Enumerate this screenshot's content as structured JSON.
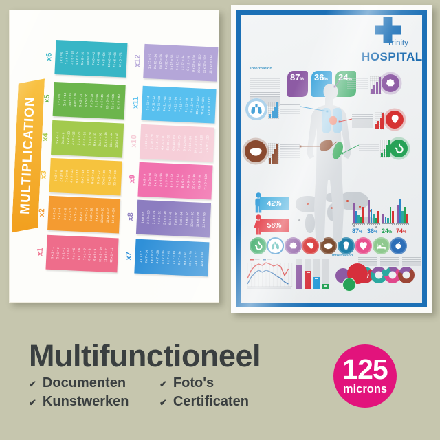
{
  "background_color": "#c6c6ae",
  "product": {
    "title": "Multifunctioneel",
    "check_glyph": "✔",
    "features": [
      {
        "label": "Documenten"
      },
      {
        "label": "Kunstwerken"
      },
      {
        "label": "Foto's"
      },
      {
        "label": "Certificaten"
      }
    ],
    "badge": {
      "value": "125",
      "unit": "microns",
      "color": "#e2137c"
    }
  },
  "multiplication_poster": {
    "title": "MULTIPLICATION",
    "ribbon_colors": [
      "#f8c243",
      "#f29f1e"
    ],
    "strips": [
      {
        "label": "x6",
        "color": "#38b6c6",
        "equations": [
          "1 x 6 = 6",
          "2 x 6 = 12",
          "3 x 6 = 18",
          "4 x 6 = 24",
          "5 x 6 = 30",
          "6 x 6 = 36",
          "7 x 6 = 42",
          "8 x 6 = 48",
          "9 x 6 = 54",
          "10 x 6 = 60",
          "11 x 6 = 66",
          "12 x 6 = 72"
        ]
      },
      {
        "label": "x5",
        "color": "#6cb54c",
        "equations": [
          "1 x 5 = 5",
          "2 x 5 = 10",
          "3 x 5 = 15",
          "4 x 5 = 20",
          "5 x 5 = 25",
          "6 x 5 = 30",
          "7 x 5 = 35",
          "8 x 5 = 40",
          "9 x 5 = 45",
          "10 x 5 = 50",
          "11 x 5 = 55",
          "12 x 5 = 60"
        ]
      },
      {
        "label": "x4",
        "color": "#a3ca4d",
        "equations": [
          "1 x 4 = 4",
          "2 x 4 = 8",
          "3 x 4 = 12",
          "4 x 4 = 16",
          "5 x 4 = 20",
          "6 x 4 = 24",
          "7 x 4 = 28",
          "8 x 4 = 32",
          "9 x 4 = 36",
          "10 x 4 = 40",
          "11 x 4 = 44",
          "12 x 4 = 48"
        ]
      },
      {
        "label": "x3",
        "color": "#f6c33e",
        "equations": [
          "1 x 3 = 3",
          "2 x 3 = 6",
          "3 x 3 = 9",
          "4 x 3 = 12",
          "5 x 3 = 15",
          "6 x 3 = 18",
          "7 x 3 = 21",
          "8 x 3 = 24",
          "9 x 3 = 27",
          "10 x 3 = 30",
          "11 x 3 = 33",
          "12 x 3 = 36"
        ]
      },
      {
        "label": "x2",
        "color": "#f49b31",
        "equations": [
          "1 x 2 = 2",
          "2 x 2 = 4",
          "3 x 2 = 6",
          "4 x 2 = 8",
          "5 x 2 = 10",
          "6 x 2 = 12",
          "7 x 2 = 14",
          "8 x 2 = 16",
          "9 x 2 = 18",
          "10 x 2 = 20",
          "11 x 2 = 22",
          "12 x 2 = 24"
        ]
      },
      {
        "label": "x1",
        "color": "#ee6d8b",
        "equations": [
          "1 x 1 = 1",
          "2 x 1 = 2",
          "3 x 1 = 3",
          "4 x 1 = 4",
          "5 x 1 = 5",
          "6 x 1 = 6",
          "7 x 1 = 7",
          "8 x 1 = 8",
          "9 x 1 = 9",
          "10 x 1 = 10",
          "11 x 1 = 11",
          "12 x 1 = 12"
        ]
      },
      {
        "label": "x12",
        "color": "#b4a6d8",
        "equations": [
          "1 x 12 = 12",
          "2 x 12 = 24",
          "3 x 12 = 36",
          "4 x 12 = 48",
          "5 x 12 = 60",
          "6 x 12 = 72",
          "7 x 12 = 84",
          "8 x 12 = 96",
          "9 x 12 = 108",
          "10 x 12 = 120",
          "11 x 12 = 132",
          "12 x 12 = 144"
        ]
      },
      {
        "label": "x11",
        "color": "#58c0ef",
        "equations": [
          "1 x 11 = 11",
          "2 x 11 = 22",
          "3 x 11 = 33",
          "4 x 11 = 44",
          "5 x 11 = 55",
          "6 x 11 = 66",
          "7 x 11 = 77",
          "8 x 11 = 88",
          "9 x 11 = 99",
          "10 x 11 = 110",
          "11 x 11 = 121",
          "12 x 11 = 132"
        ]
      },
      {
        "label": "x10",
        "color": "#f6ced8",
        "equations": [
          "1 x 10 = 10",
          "2 x 10 = 20",
          "3 x 10 = 30",
          "4 x 10 = 40",
          "5 x 10 = 50",
          "6 x 10 = 60",
          "7 x 10 = 70",
          "8 x 10 = 80",
          "9 x 10 = 90",
          "10 x 10 = 100",
          "11 x 10 = 110",
          "12 x 10 = 120"
        ]
      },
      {
        "label": "x9",
        "color": "#f171ae",
        "equations": [
          "1 x 9 = 9",
          "2 x 9 = 18",
          "3 x 9 = 27",
          "4 x 9 = 36",
          "5 x 9 = 45",
          "6 x 9 = 54",
          "7 x 9 = 63",
          "8 x 9 = 72",
          "9 x 9 = 81",
          "10 x 9 = 90",
          "11 x 9 = 99",
          "12 x 9 = 108"
        ]
      },
      {
        "label": "x8",
        "color": "#8c7dc0",
        "equations": [
          "1 x 8 = 8",
          "2 x 8 = 16",
          "3 x 8 = 24",
          "4 x 8 = 32",
          "5 x 8 = 40",
          "6 x 8 = 48",
          "7 x 8 = 56",
          "8 x 8 = 64",
          "9 x 8 = 72",
          "10 x 8 = 80",
          "11 x 8 = 88",
          "12 x 8 = 96"
        ]
      },
      {
        "label": "x7",
        "color": "#2f90d8",
        "equations": [
          "1 x 7 = 7",
          "2 x 7 = 14",
          "3 x 7 = 21",
          "4 x 7 = 28",
          "5 x 7 = 35",
          "6 x 7 = 42",
          "7 x 7 = 49",
          "8 x 7 = 56",
          "9 x 7 = 63",
          "10 x 7 = 70",
          "11 x 7 = 77",
          "12 x 7 = 84"
        ]
      }
    ]
  },
  "hospital_poster": {
    "frame_color": "#1c70b6",
    "brand": {
      "cross_color": "#1d71b8",
      "line1": "Trinity",
      "line2": "HOSPITAL",
      "text_color": "#1d6cb0"
    },
    "info_heading": "Information",
    "info_heading_2": "Information",
    "stat_badges": [
      {
        "value": "87",
        "suffix": "%",
        "color": "#8d5ba4"
      },
      {
        "value": "36",
        "suffix": "%",
        "color": "#2b9cd8"
      },
      {
        "value": "24",
        "suffix": "%",
        "color": "#27a257"
      }
    ],
    "organ_callouts": [
      {
        "name": "brain",
        "color": "#8d5ba4"
      },
      {
        "name": "lungs",
        "color": "#4aa3d8"
      },
      {
        "name": "heart",
        "color": "#d63333"
      },
      {
        "name": "liver",
        "color": "#8a4a30"
      },
      {
        "name": "stomach",
        "color": "#27a257"
      }
    ],
    "gender_stats": [
      {
        "label": "42%",
        "color": "#3aa9dc",
        "icon": "male",
        "icon_color": "#2f9ad8"
      },
      {
        "label": "58%",
        "color": "#e0232e",
        "icon": "female",
        "icon_color": "#e0232e"
      }
    ],
    "region_stats": [
      {
        "value": "87",
        "suffix": "%",
        "color": "#2b86c8",
        "bars": [
          30,
          18,
          12,
          9,
          24
        ]
      },
      {
        "value": "36",
        "suffix": "%",
        "color": "#2b86c8",
        "bars": [
          34,
          21,
          13,
          8,
          18
        ]
      },
      {
        "value": "24",
        "suffix": "%",
        "color": "#27a257",
        "bars": [
          14,
          10,
          8,
          24,
          18
        ]
      },
      {
        "value": "74",
        "suffix": "%",
        "color": "#d63333",
        "bars": [
          27,
          35,
          18,
          24,
          14
        ]
      }
    ],
    "region_bar_colors": [
      "#8d5ba4",
      "#2b86c8",
      "#2ba8a0",
      "#27a257",
      "#d63333"
    ],
    "organ_row": [
      {
        "icon": "stomach",
        "bg": "#27a257",
        "style": "solid"
      },
      {
        "icon": "lungs",
        "bg": "#ffffff",
        "ring": "#2b86c8",
        "glyph": "#2ba8a0",
        "style": "ring"
      },
      {
        "icon": "brain",
        "bg": "#8d5ba4",
        "style": "solid"
      },
      {
        "icon": "kidney",
        "bg": "#d63333",
        "style": "solid"
      },
      {
        "icon": "liver",
        "bg": "#7a4a2e",
        "style": "solid"
      },
      {
        "icon": "tooth",
        "bg": "#1f7fa8",
        "style": "solid"
      },
      {
        "icon": "heart",
        "bg": "#e8528f",
        "style": "solid"
      },
      {
        "icon": "bed",
        "bg": "#8fc98f",
        "style": "solid"
      },
      {
        "icon": "apple",
        "bg": "#2e6fb8",
        "style": "solid"
      }
    ],
    "line_chart": {
      "series": [
        {
          "color": "#d63333",
          "points": [
            30,
            18,
            12,
            9,
            11,
            7,
            9,
            12,
            10,
            13,
            26,
            16
          ]
        },
        {
          "color": "#2b6cb0",
          "points": [
            38,
            28,
            22,
            18,
            21,
            18,
            20,
            23,
            27,
            30,
            35,
            38
          ]
        }
      ]
    },
    "bar_chart": [
      {
        "color": "#8d5ba4",
        "pct": 80
      },
      {
        "color": "#d62f3c",
        "pct": 62
      },
      {
        "color": "#2b9cd8",
        "pct": 42
      },
      {
        "color": "#27a257",
        "pct": 18
      }
    ],
    "venn": [
      {
        "color": "#8d5ba4"
      },
      {
        "color": "#d62f3c"
      },
      {
        "color": "#27a257"
      }
    ],
    "donuts": [
      {
        "segments": [
          {
            "color": "#cf3340",
            "pct": 78
          },
          {
            "color": "#2ba8a0",
            "pct": 22
          }
        ]
      },
      {
        "segments": [
          {
            "color": "#2ba8a0",
            "pct": 70
          },
          {
            "color": "#8d5ba4",
            "pct": 30
          }
        ]
      },
      {
        "segments": [
          {
            "color": "#e0488c",
            "pct": 62
          },
          {
            "color": "#2ba8a0",
            "pct": 20
          },
          {
            "color": "#8d5ba4",
            "pct": 18
          }
        ]
      },
      {
        "segments": [
          {
            "color": "#9c4636",
            "pct": 70
          },
          {
            "color": "#8d5ba4",
            "pct": 30
          }
        ]
      }
    ]
  }
}
